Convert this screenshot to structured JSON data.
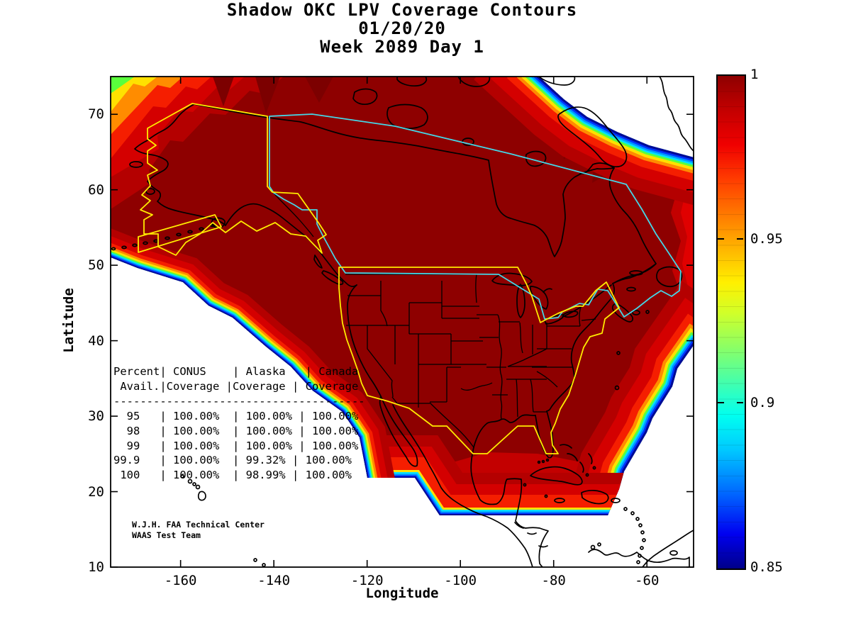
{
  "figure": {
    "background": "#FFFFFF",
    "title_lines": [
      "Shadow OKC LPV Coverage Contours",
      "01/20/20",
      "Week 2089 Day 1"
    ]
  },
  "axes": {
    "x_label": "Longitude",
    "y_label": "Latitude",
    "x_tick_values": [
      -160,
      -140,
      -120,
      -100,
      -80,
      -60
    ],
    "y_tick_values": [
      70,
      60,
      50,
      40,
      30,
      20,
      10
    ],
    "x_range": [
      -175,
      -50
    ],
    "y_range": [
      10,
      75
    ]
  },
  "colorbar": {
    "min": 0.85,
    "max": 1,
    "labels": [
      {
        "text": "1",
        "value": 1
      },
      {
        "text": "0.95",
        "value": 0.95
      },
      {
        "text": "0.9",
        "value": 0.9
      },
      {
        "text": "0.85",
        "value": 0.85
      }
    ],
    "tick_values": [
      0.95,
      0.9
    ],
    "colormap": "jet"
  },
  "coverage_table": {
    "lines": [
      "Percent| CONUS    | Alaska   | Canada",
      " Avail.|Coverage |Coverage | Coverage",
      "--------------------------------------",
      "  95   | 100.00%  | 100.00% | 100.00%",
      "  98   | 100.00%  | 100.00% | 100.00%",
      "  99   | 100.00%  | 100.00% | 100.00%",
      "99.9   | 100.00%  | 99.32% | 100.00%",
      " 100   | 100.00%  | 98.99% | 100.00%"
    ],
    "columns": [
      "Percent Avail.",
      "CONUS Coverage",
      "Alaska Coverage",
      "Canada Coverage"
    ],
    "rows": [
      [
        "95",
        "100.00%",
        "100.00%",
        "100.00%"
      ],
      [
        "98",
        "100.00%",
        "100.00%",
        "100.00%"
      ],
      [
        "99",
        "100.00%",
        "100.00%",
        "100.00%"
      ],
      [
        "99.9",
        "100.00%",
        "99.32%",
        "100.00%"
      ],
      [
        "100",
        "100.00%",
        "98.99%",
        "100.00%"
      ]
    ]
  },
  "attribution": {
    "line1": "W.J.H. FAA Technical Center",
    "line2": "WAAS Test Team"
  },
  "colors": {
    "interior_dark_red": "#8E0000",
    "band_red_2": "#B40000",
    "band_red_1": "#D40000",
    "band_bright_red": "#F51E00",
    "band_orange": "#FF8C00",
    "band_yellow": "#FFE100",
    "band_green": "#5AFF3C",
    "band_cyan": "#00E1FF",
    "band_light_blue": "#0096FF",
    "band_blue": "#0032FF",
    "band_dark_blue": "#000A96",
    "conus_alaska_boundary_yellow": "#FFEB00",
    "canada_boundary_cyan": "#45D6E6",
    "coastline_black": "#000000"
  },
  "chart_data": {
    "type": "heatmap",
    "title": "Shadow OKC LPV Coverage Contours 01/20/20 Week 2089 Day 1",
    "xlabel": "Longitude",
    "ylabel": "Latitude",
    "xlim": [
      -175,
      -50
    ],
    "ylim": [
      10,
      75
    ],
    "grid": false,
    "colorbar": {
      "min": 0.85,
      "max": 1,
      "ticks": [
        1,
        0.95,
        0.9,
        0.85
      ],
      "colormap": "jet"
    },
    "description": "LPV availability coverage contours over North America. Interior of the coverage region is ~1.0 (dark red); values fall through jet colormap bands (red, orange, yellow, green, cyan, blue) to 0.85 at the outer contour along the Pacific southwest edge, the Atlantic northeast and southeast edges, a flat southern cutoff near latitude 17, and the northwest plot corner. Yellow outline = CONUS and Alaska WAAS service volumes; cyan outline = Canada service volume; black = coastlines and state borders.",
    "coverage_summary": {
      "percent_avail": [
        95,
        98,
        99,
        99.9,
        100
      ],
      "conus_coverage": [
        "100.00%",
        "100.00%",
        "100.00%",
        "100.00%",
        "100.00%"
      ],
      "alaska_coverage": [
        "100.00%",
        "100.00%",
        "100.00%",
        "99.32%",
        "98.99%"
      ],
      "canada_coverage": [
        "100.00%",
        "100.00%",
        "100.00%",
        "100.00%",
        "100.00%"
      ]
    }
  }
}
